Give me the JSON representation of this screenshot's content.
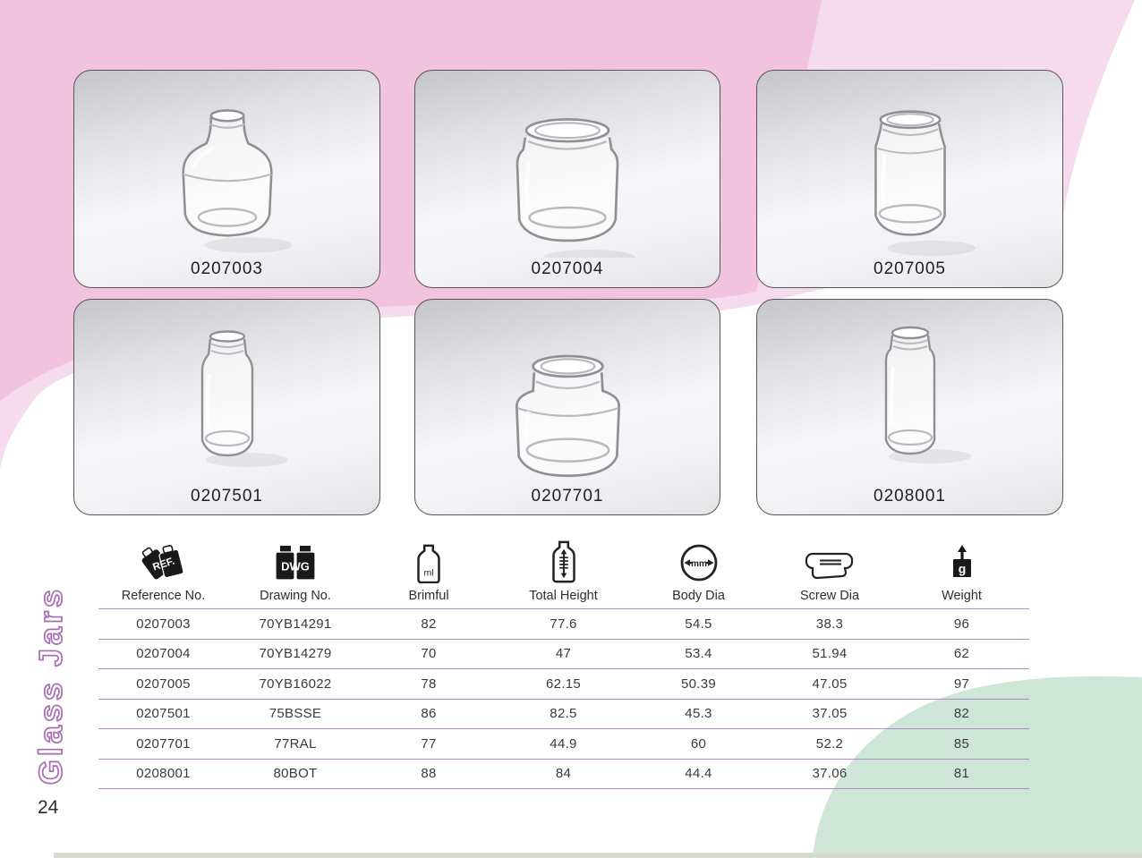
{
  "page": {
    "number": "24",
    "side_label": "Glass Jars"
  },
  "colors": {
    "pink_strong": "#f2c3de",
    "pink_light": "#f5dbeb",
    "green": "#cee6d8",
    "table_line": "#b18bc5",
    "outline_text": "#a66cb4"
  },
  "products": [
    {
      "ref": "0207003",
      "shape": "bulbous"
    },
    {
      "ref": "0207004",
      "shape": "short-wide"
    },
    {
      "ref": "0207005",
      "shape": "straight"
    },
    {
      "ref": "0207501",
      "shape": "slim-tall"
    },
    {
      "ref": "0207701",
      "shape": "squat"
    },
    {
      "ref": "0208001",
      "shape": "tall-slim"
    }
  ],
  "table": {
    "columns": [
      {
        "label": "Reference No.",
        "icon": "ref-tags-icon"
      },
      {
        "label": "Drawing No.",
        "icon": "dwg-jars-icon"
      },
      {
        "label": "Brimful",
        "icon": "brimful-bottle-icon"
      },
      {
        "label": "Total Height",
        "icon": "height-bottle-icon"
      },
      {
        "label": "Body Dia",
        "icon": "body-dia-icon"
      },
      {
        "label": "Screw Dia",
        "icon": "screw-cap-icon"
      },
      {
        "label": "Weight",
        "icon": "weight-icon"
      }
    ],
    "rows": [
      [
        "0207003",
        "70YB14291",
        "82",
        "77.6",
        "54.5",
        "38.3",
        "96"
      ],
      [
        "0207004",
        "70YB14279",
        "70",
        "47",
        "53.4",
        "51.94",
        "62"
      ],
      [
        "0207005",
        "70YB16022",
        "78",
        "62.15",
        "50.39",
        "47.05",
        "97"
      ],
      [
        "0207501",
        "75BSSE",
        "86",
        "82.5",
        "45.3",
        "37.05",
        "82"
      ],
      [
        "0207701",
        "77RAL",
        "77",
        "44.9",
        "60",
        "52.2",
        "85"
      ],
      [
        "0208001",
        "80BOT",
        "88",
        "84",
        "44.4",
        "37.06",
        "81"
      ]
    ]
  }
}
